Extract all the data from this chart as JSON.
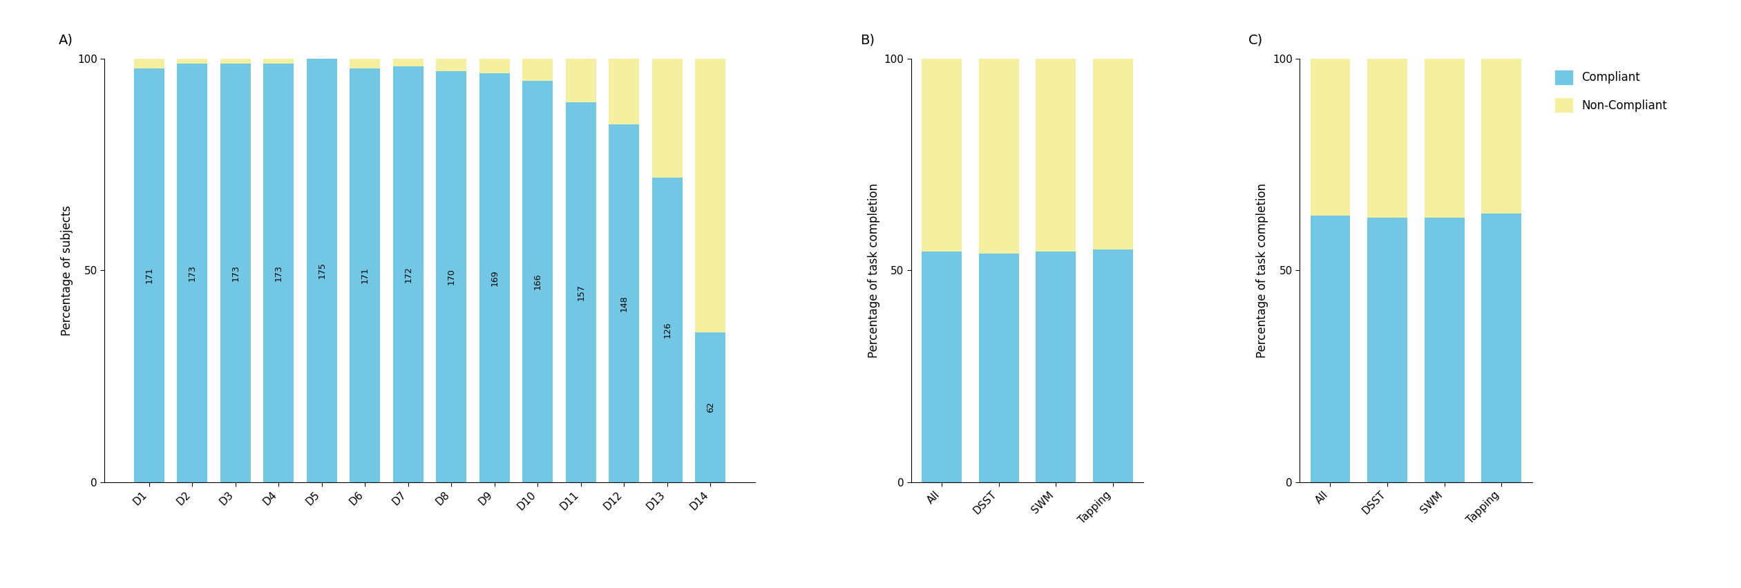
{
  "panel_A": {
    "categories": [
      "D1",
      "D2",
      "D3",
      "D4",
      "D5",
      "D6",
      "D7",
      "D8",
      "D9",
      "D10",
      "D11",
      "D12",
      "D13",
      "D14"
    ],
    "compliant_counts": [
      171,
      173,
      173,
      173,
      175,
      171,
      172,
      170,
      169,
      166,
      157,
      148,
      126,
      62
    ],
    "total": 175,
    "ylabel": "Percentage of subjects",
    "label": "A)"
  },
  "panel_B": {
    "categories": [
      "All",
      "DSST",
      "SWM",
      "Tapping"
    ],
    "compliant_pct": [
      54.5,
      54.0,
      54.5,
      55.0
    ],
    "ylabel": "Percentage of task completion",
    "label": "B)"
  },
  "panel_C": {
    "categories": [
      "All",
      "DSST",
      "SWM",
      "Tapping"
    ],
    "compliant_pct": [
      63.0,
      62.5,
      62.5,
      63.5
    ],
    "ylabel": "Percentage of task completion",
    "label": "C)"
  },
  "colors": {
    "compliant": "#72C8E4",
    "non_compliant": "#F5F0A0"
  },
  "legend": {
    "compliant_label": "Compliant",
    "non_compliant_label": "Non-Compliant"
  },
  "ylim": [
    0,
    100
  ],
  "yticks": [
    0,
    50,
    100
  ],
  "background_color": "#ffffff"
}
